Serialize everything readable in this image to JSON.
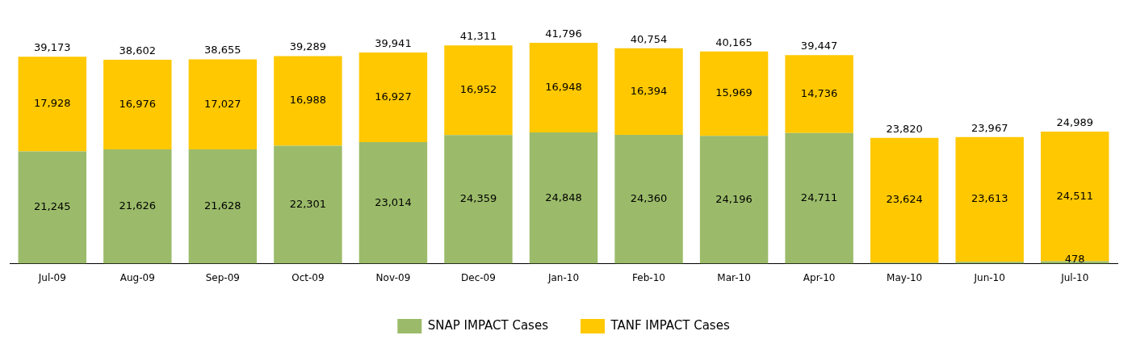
{
  "chart_data": {
    "type": "bar",
    "stacked": true,
    "categories": [
      "Jul-09",
      "Aug-09",
      "Sep-09",
      "Oct-09",
      "Nov-09",
      "Dec-09",
      "Jan-10",
      "Feb-10",
      "Mar-10",
      "Apr-10",
      "May-10",
      "Jun-10",
      "Jul-10"
    ],
    "series": [
      {
        "name": "SNAP IMPACT Cases",
        "color": "#9bbb6a",
        "values": [
          21245,
          21626,
          21628,
          22301,
          23014,
          24359,
          24848,
          24360,
          24196,
          24711,
          196,
          354,
          478
        ],
        "value_labels": [
          "21,245",
          "21,626",
          "21,628",
          "22,301",
          "23,014",
          "24,359",
          "24,848",
          "24,360",
          "24,196",
          "24,711",
          null,
          null,
          "478"
        ]
      },
      {
        "name": "TANF IMPACT Cases",
        "color": "#ffc800",
        "values": [
          17928,
          16976,
          17027,
          16988,
          16927,
          16952,
          16948,
          16394,
          15969,
          14736,
          23624,
          23613,
          24511
        ],
        "value_labels": [
          "17,928",
          "16,976",
          "17,027",
          "16,988",
          "16,927",
          "16,952",
          "16,948",
          "16,394",
          "15,969",
          "14,736",
          "23,624",
          "23,613",
          "24,511"
        ]
      }
    ],
    "totals": [
      "39,173",
      "38,602",
      "38,655",
      "39,289",
      "39,941",
      "41,311",
      "41,796",
      "40,754",
      "40,165",
      "39,447",
      "23,820",
      "23,967",
      "24,989"
    ],
    "legend": "bottom",
    "grid": false,
    "tick_labels": "x"
  }
}
